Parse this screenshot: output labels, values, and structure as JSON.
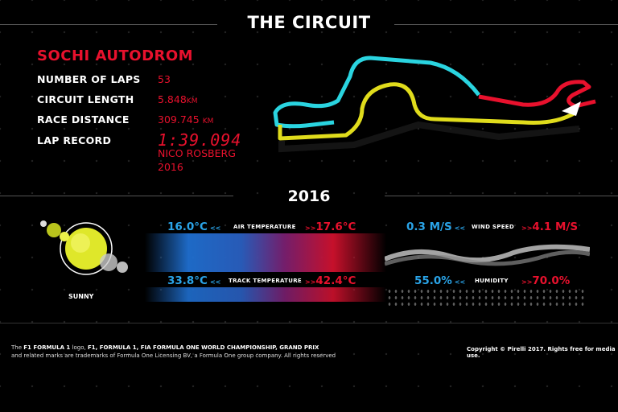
{
  "header": {
    "title": "THE CIRCUIT"
  },
  "circuit": {
    "name": "SOCHI AUTODROM",
    "stats": [
      {
        "label": "NUMBER OF LAPS",
        "value": "53",
        "unit": ""
      },
      {
        "label": "CIRCUIT LENGTH",
        "value": "5.848",
        "unit": "KM"
      },
      {
        "label": "RACE DISTANCE",
        "value": "309.745",
        "unit": "KM"
      }
    ],
    "lap_record_label": "LAP RECORD",
    "lap_record_time": "1:39.094",
    "lap_record_driver": "NICO ROSBERG",
    "lap_record_year": "2016"
  },
  "track_colors": {
    "sector1": "#2ad4e0",
    "sector2": "#e8112d",
    "sector3": "#e8e020"
  },
  "weather": {
    "year": "2016",
    "condition": "SUNNY",
    "air_temperature": {
      "label": "AIR TEMPERATURE",
      "min": "16.0°C",
      "max": "17.6°C"
    },
    "track_temperature": {
      "label": "TRACK TEMPERATURE",
      "min": "33.8°C",
      "max": "42.4°C"
    },
    "wind_speed": {
      "label": "WIND SPEED",
      "min": "0.3 M/S",
      "max": "4.1 M/S"
    },
    "humidity": {
      "label": "HUMIDITY",
      "min": "55.0%",
      "max": "70.0%"
    }
  },
  "footer": {
    "legal_prefix": "The ",
    "legal_bold": "F1 FORMULA 1",
    "legal_mid": " logo, ",
    "legal_bold2": "F1, FORMULA 1, FIA FORMULA ONE WORLD CHAMPIONSHIP, GRAND PRIX",
    "legal_line2": "and related marks are trademarks of Formula One Licensing BV, a Formula One group company. All rights reserved",
    "copyright": "Copyright © Pirelli 2017. Rights free for media use."
  }
}
